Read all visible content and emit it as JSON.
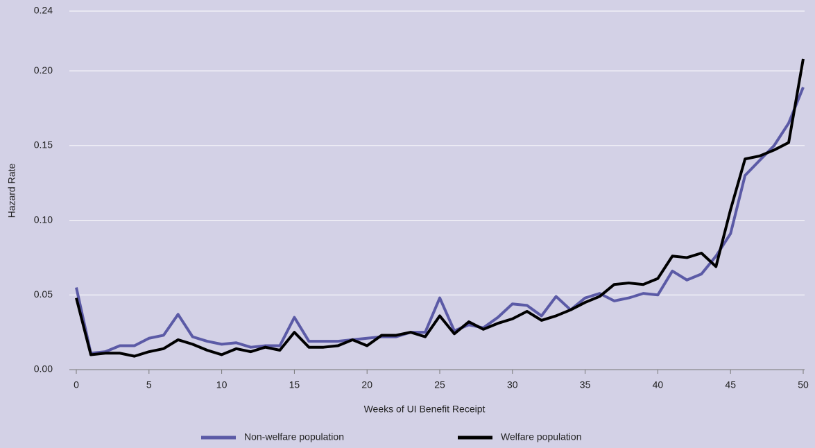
{
  "chart_data": {
    "type": "line",
    "x_label": "Weeks of UI Benefit Receipt",
    "y_label": "Hazard Rate",
    "x": [
      0,
      1,
      2,
      3,
      4,
      5,
      6,
      7,
      8,
      9,
      10,
      11,
      12,
      13,
      14,
      15,
      16,
      17,
      18,
      19,
      20,
      21,
      22,
      23,
      24,
      25,
      26,
      27,
      28,
      29,
      30,
      31,
      32,
      33,
      34,
      35,
      36,
      37,
      38,
      39,
      40,
      41,
      42,
      43,
      44,
      45,
      46,
      47,
      48,
      49,
      50
    ],
    "series": [
      {
        "name": "Non-welfare population",
        "color": "#5b5aa6",
        "values": [
          0.055,
          0.011,
          0.012,
          0.016,
          0.016,
          0.021,
          0.023,
          0.037,
          0.022,
          0.019,
          0.017,
          0.018,
          0.015,
          0.016,
          0.016,
          0.035,
          0.019,
          0.019,
          0.019,
          0.02,
          0.021,
          0.022,
          0.022,
          0.025,
          0.025,
          0.048,
          0.026,
          0.03,
          0.028,
          0.035,
          0.044,
          0.043,
          0.036,
          0.049,
          0.04,
          0.048,
          0.051,
          0.046,
          0.048,
          0.051,
          0.05,
          0.066,
          0.06,
          0.064,
          0.076,
          0.091,
          0.13,
          0.14,
          0.15,
          0.165,
          0.189
        ]
      },
      {
        "name": "Welfare population",
        "color": "#000000",
        "values": [
          0.048,
          0.01,
          0.011,
          0.011,
          0.009,
          0.012,
          0.014,
          0.02,
          0.017,
          0.013,
          0.01,
          0.014,
          0.012,
          0.015,
          0.013,
          0.025,
          0.015,
          0.015,
          0.016,
          0.02,
          0.016,
          0.023,
          0.023,
          0.025,
          0.022,
          0.036,
          0.024,
          0.032,
          0.027,
          0.031,
          0.034,
          0.039,
          0.033,
          0.036,
          0.04,
          0.045,
          0.049,
          0.057,
          0.058,
          0.057,
          0.061,
          0.076,
          0.075,
          0.078,
          0.069,
          0.107,
          0.141,
          0.143,
          0.147,
          0.152,
          0.208
        ]
      }
    ],
    "xlim": [
      0,
      50
    ],
    "xticks": [
      0,
      5,
      10,
      15,
      20,
      25,
      30,
      35,
      40,
      45,
      50
    ],
    "ylim": [
      0,
      0.24
    ],
    "yticks": [
      {
        "value": 0,
        "label": "0.00"
      },
      {
        "value": 0.05,
        "label": "0.05"
      },
      {
        "value": 0.1,
        "label": "0.10"
      },
      {
        "value": 0.15,
        "label": "0.15"
      },
      {
        "value": 0.2,
        "label": "0.20"
      },
      {
        "value": 0.24,
        "label": "0.24"
      }
    ],
    "grid": true,
    "legend": "bottom"
  }
}
